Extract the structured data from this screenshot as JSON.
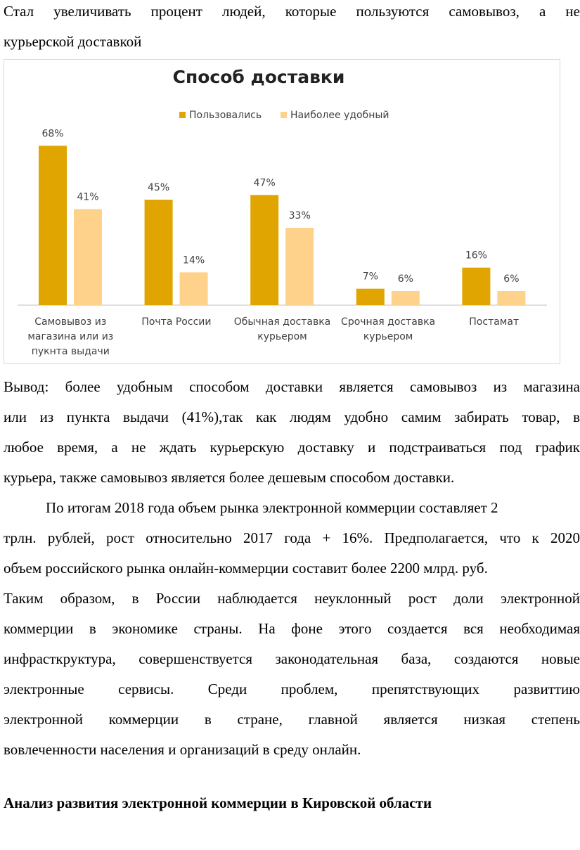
{
  "paragraph_top": {
    "lines": [
      "Стал увеличивать процент людей, которые пользуются самовывоз, а не",
      "курьерской доставкой"
    ]
  },
  "chart_data": {
    "type": "bar",
    "title": "Способ доставки",
    "legend_position": "top",
    "categories": [
      [
        "Самовывоз из",
        "магазина или из",
        "пукнта выдачи"
      ],
      [
        "Почта России"
      ],
      [
        "Обычная доставка",
        "курьером"
      ],
      [
        "Срочная доставка",
        "курьером"
      ],
      [
        "Постамат"
      ]
    ],
    "series": [
      {
        "name": "Пользовались",
        "values": [
          68,
          45,
          47,
          7,
          16
        ],
        "labels": [
          "68%",
          "45%",
          "47%",
          "7%",
          "16%"
        ],
        "color": "#E0A500"
      },
      {
        "name": "Наиболее удобный",
        "values": [
          41,
          14,
          33,
          6,
          6
        ],
        "labels": [
          "41%",
          "14%",
          "33%",
          "6%",
          "6%"
        ],
        "color": "#FFD28C"
      }
    ],
    "ylim": [
      0,
      78
    ],
    "grid": false
  },
  "body": {
    "conclusion_lines": [
      "Вывод: более удобным способом доставки является самовывоз из магазина",
      "или из пункта выдачи (41%),так как людям удобно самим забирать товар, в",
      "любое время, а не ждать курьерскую доставку и подстраиваться под график",
      "курьера, также самовывоз является более дешевым способом доставки."
    ],
    "market_lines": [
      "По итогам 2018 года объем рынка электронной коммерции составляет 2",
      "трлн. рублей, рост относительно 2017 года + 16%. Предполагается, что к 2020",
      "объем российского рынка онлайн-коммерции составит более 2200 млрд. руб.",
      "Таким образом, в России наблюдается неуклонный рост доли электронной",
      "коммерции в экономике страны. На фоне этого создается вся необходимая",
      "инфрасткруктура, совершенствуется законодательная база, создаются новые",
      "электронные сервисы. Среди проблем, препятствующих развиттию",
      "электронной коммерции в стране, главной является низкая степень",
      "вовлеченности населения и организаций в среду онлайн."
    ]
  },
  "section_heading": "Анализ развития электронной коммерции в Кировской области"
}
